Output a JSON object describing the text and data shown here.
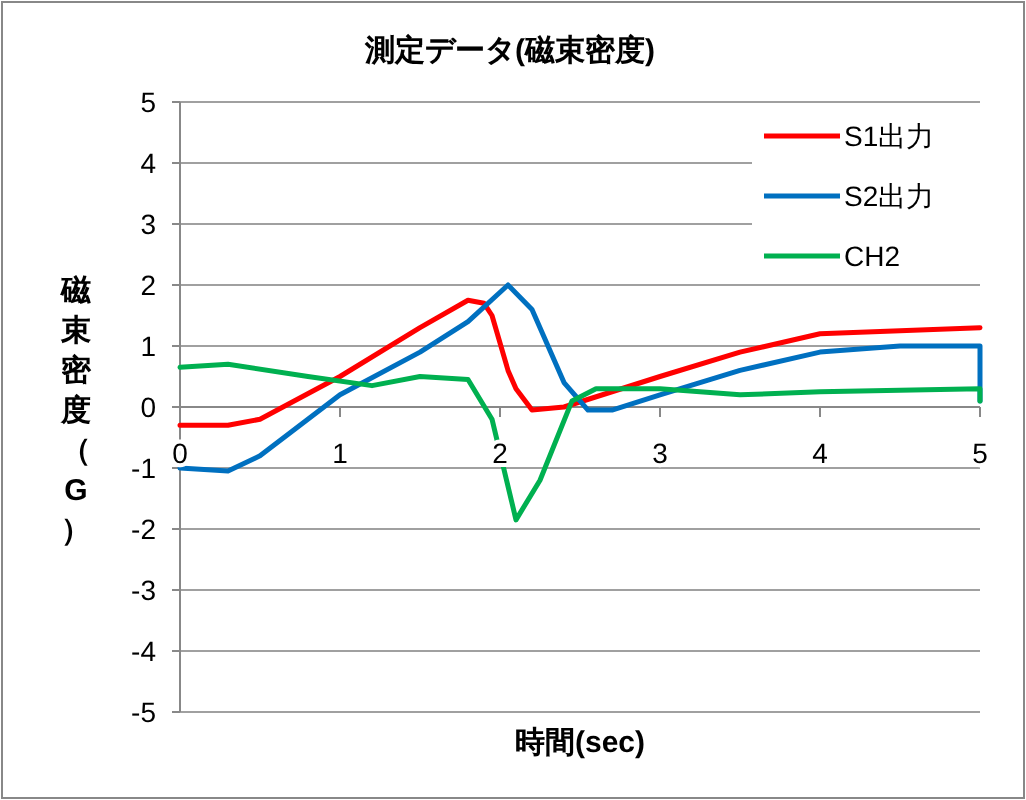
{
  "chart_data": {
    "type": "line",
    "title": "測定データ(磁束密度)",
    "xlabel": "時間(sec)",
    "ylabel": "磁束密度（G）",
    "xlim": [
      0,
      5
    ],
    "xticks": [
      0,
      1,
      2,
      3,
      4,
      5
    ],
    "ylim": [
      -5,
      5
    ],
    "yticks": [
      -5,
      -4,
      -3,
      -2,
      -1,
      0,
      1,
      2,
      3,
      4,
      5
    ],
    "grid": "y",
    "legend": "top right",
    "line_style": "solid",
    "marker": "none",
    "series": [
      {
        "name": "S1出力",
        "color": "#ff0000",
        "x": [
          0,
          0.3,
          0.5,
          1.0,
          1.5,
          1.8,
          1.9,
          1.95,
          2.05,
          2.1,
          2.2,
          2.4,
          3,
          3.5,
          4,
          4.5,
          5
        ],
        "values": [
          -0.3,
          -0.3,
          -0.2,
          0.5,
          1.3,
          1.75,
          1.7,
          1.5,
          0.6,
          0.3,
          -0.05,
          0.0,
          0.5,
          0.9,
          1.2,
          1.25,
          1.3
        ]
      },
      {
        "name": "S2出力",
        "color": "#0070c0",
        "x": [
          0,
          0.3,
          0.5,
          1,
          1.5,
          1.8,
          2.05,
          2.2,
          2.4,
          2.55,
          2.7,
          3,
          3.5,
          4,
          4.5,
          5,
          5
        ],
        "values": [
          -1.0,
          -1.05,
          -0.8,
          0.2,
          0.9,
          1.4,
          2.0,
          1.6,
          0.4,
          -0.05,
          -0.05,
          0.2,
          0.6,
          0.9,
          1.0,
          1.0,
          0.1
        ]
      },
      {
        "name": "CH2",
        "color": "#00b050",
        "x": [
          0,
          0.3,
          0.8,
          1.2,
          1.5,
          1.8,
          1.95,
          2.1,
          2.25,
          2.45,
          2.6,
          3,
          3.5,
          4,
          5,
          5
        ],
        "values": [
          0.65,
          0.7,
          0.5,
          0.35,
          0.5,
          0.45,
          -0.2,
          -1.85,
          -1.2,
          0.1,
          0.3,
          0.3,
          0.2,
          0.25,
          0.3,
          0.1
        ]
      }
    ]
  }
}
